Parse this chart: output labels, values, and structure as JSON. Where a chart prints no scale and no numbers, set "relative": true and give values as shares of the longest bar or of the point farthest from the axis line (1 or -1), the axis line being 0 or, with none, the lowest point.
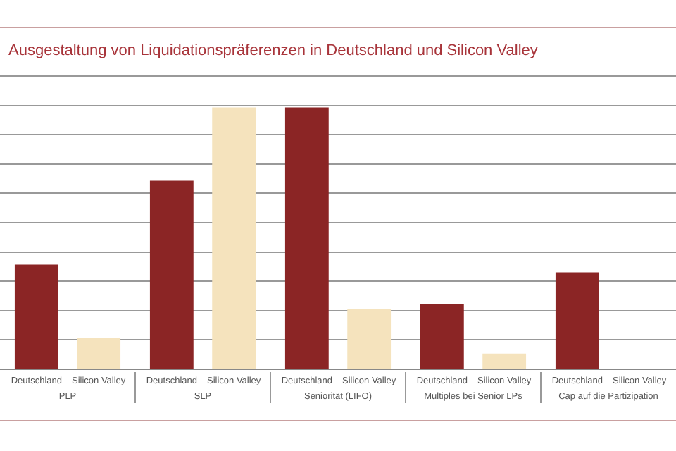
{
  "chart_data": {
    "type": "bar",
    "title": "Ausgestaltung von Liquidationspräferenzen in Deutschland und Silicon Valley",
    "relative": true,
    "grid": "y",
    "legend": false,
    "categories": [
      "PLP",
      "SLP",
      "Seniorität (LIFO)",
      "Multiples bei Senior LPs",
      "Cap auf die Partizipation"
    ],
    "series": [
      {
        "name": "Deutschland",
        "color": "#8b2525",
        "values": [
          0.4,
          0.72,
          1,
          0.25,
          0.37
        ]
      },
      {
        "name": "Silicon Valley",
        "color": "#f5e3bd",
        "values": [
          0.12,
          1,
          0.23,
          0.06,
          null
        ]
      }
    ]
  }
}
